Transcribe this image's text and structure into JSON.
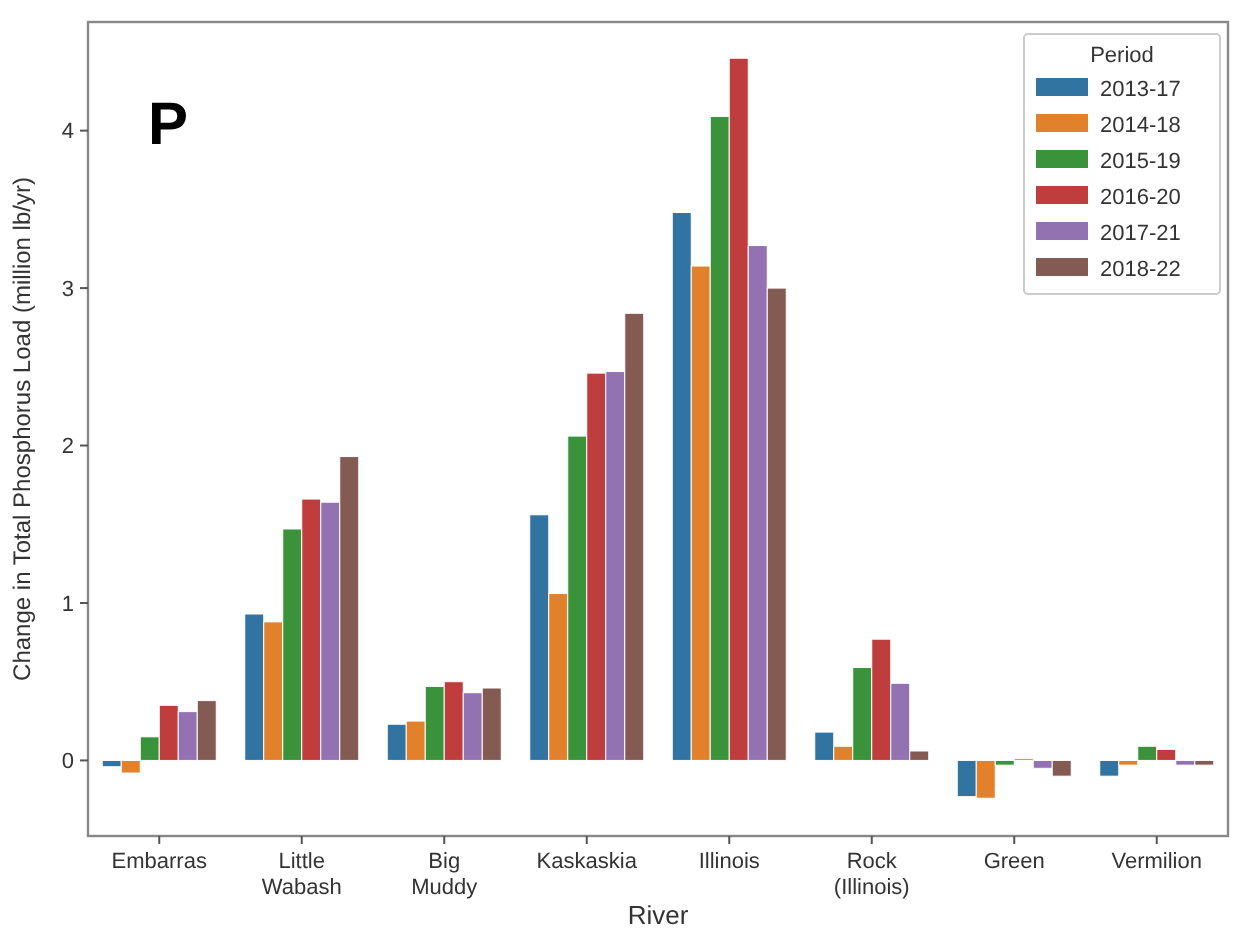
{
  "chart_data": {
    "type": "bar",
    "xlabel": "River",
    "ylabel": "Change in Total Phosphorus Load (million lb/yr)",
    "legend_title": "Period",
    "legend": "top right",
    "annotations": [
      "P"
    ],
    "categories": [
      "Embarras",
      "Little\nWabash",
      "Big\nMuddy",
      "Kaskaskia",
      "Illinois",
      "Rock\n(Illinois)",
      "Green",
      "Vermilion"
    ],
    "ylim": [
      -0.48,
      4.69
    ],
    "yticks": [
      0,
      1,
      2,
      3,
      4
    ],
    "series": [
      {
        "name": "2013-17",
        "color": "#3274a1",
        "values": [
          -0.04,
          0.93,
          0.23,
          1.56,
          3.48,
          0.18,
          -0.23,
          -0.1
        ]
      },
      {
        "name": "2014-18",
        "color": "#e1812c",
        "values": [
          -0.08,
          0.88,
          0.25,
          1.06,
          3.14,
          0.09,
          -0.24,
          -0.03
        ]
      },
      {
        "name": "2015-19",
        "color": "#3a923a",
        "values": [
          0.15,
          1.47,
          0.47,
          2.06,
          4.09,
          0.59,
          -0.03,
          0.09
        ]
      },
      {
        "name": "2016-20",
        "color": "#c03d3e",
        "values": [
          0.35,
          1.66,
          0.5,
          2.46,
          4.46,
          0.77,
          0.01,
          0.07
        ]
      },
      {
        "name": "2017-21",
        "color": "#9372b2",
        "values": [
          0.31,
          1.64,
          0.43,
          2.47,
          3.27,
          0.49,
          -0.05,
          -0.03
        ]
      },
      {
        "name": "2018-22",
        "color": "#845b53",
        "values": [
          0.38,
          1.93,
          0.46,
          2.84,
          3.0,
          0.06,
          -0.1,
          -0.03
        ]
      }
    ]
  }
}
